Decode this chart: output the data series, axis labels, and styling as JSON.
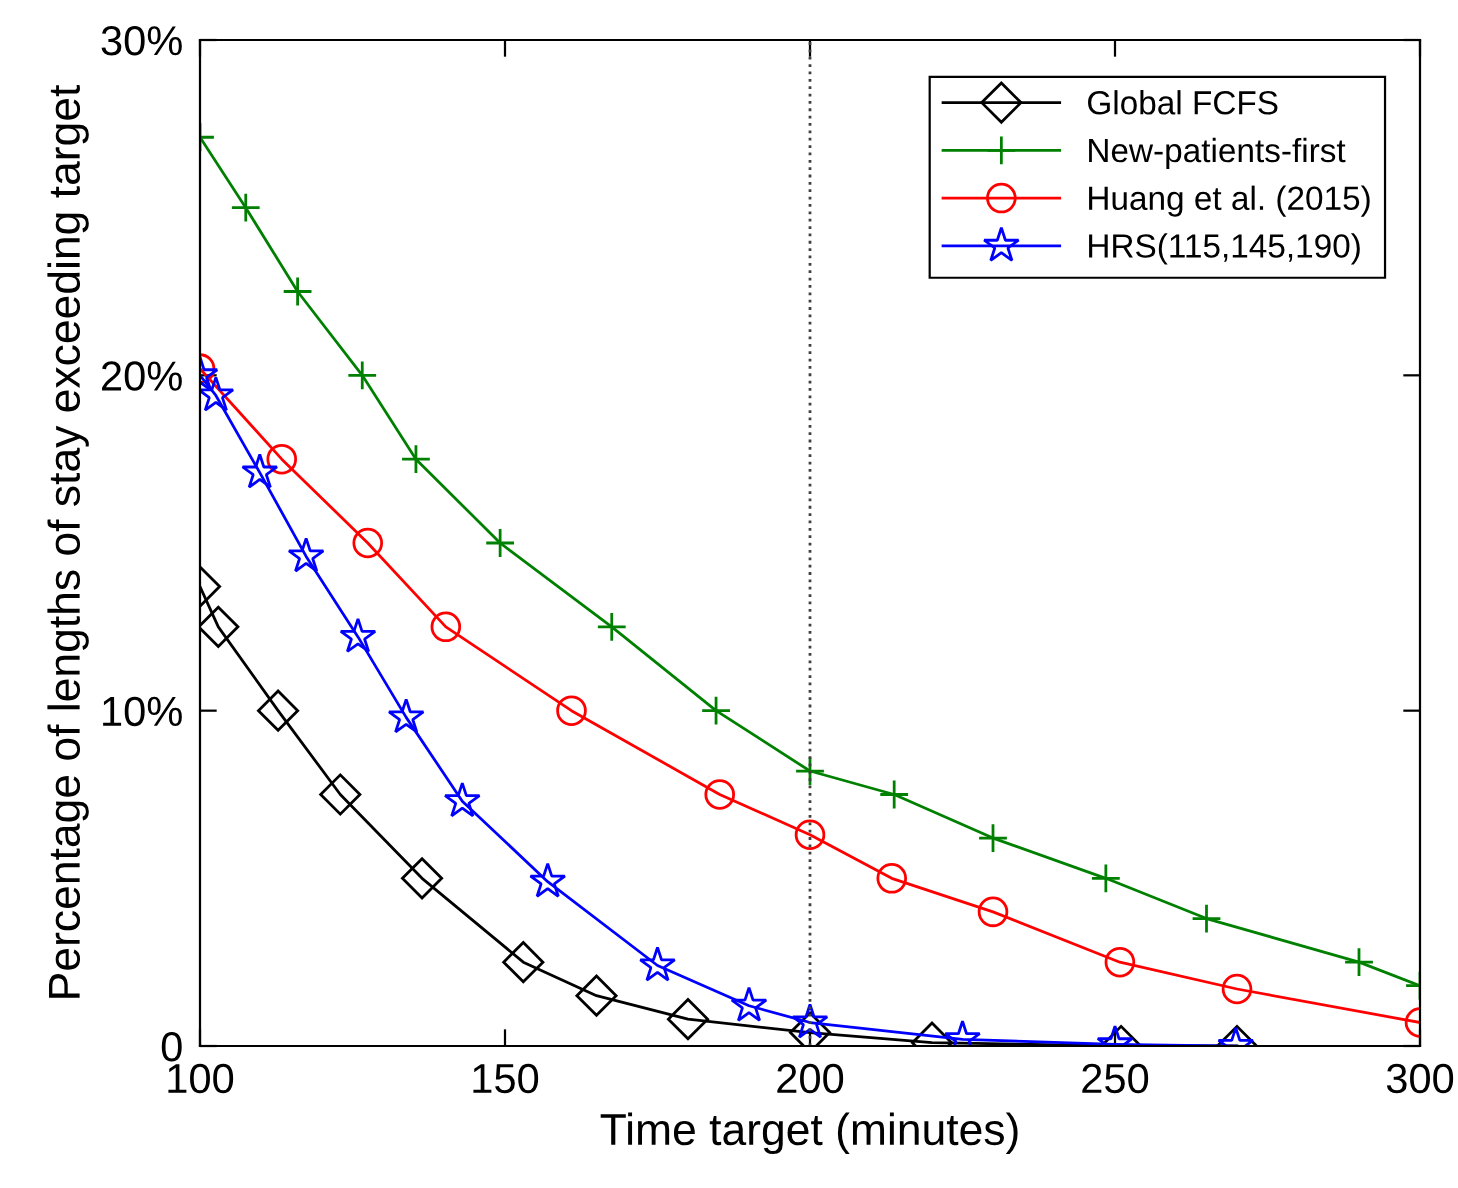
{
  "chart_data": {
    "type": "line",
    "xlabel": "Time target (minutes)",
    "ylabel": "Percentage of lengths of stay exceeding target",
    "xlim": [
      100,
      300
    ],
    "xticks": [
      100,
      150,
      200,
      250,
      300
    ],
    "ylim": [
      0,
      30
    ],
    "yticks": [
      {
        "value": 0,
        "label": "0"
      },
      {
        "value": 10,
        "label": "10%"
      },
      {
        "value": 20,
        "label": "20%"
      },
      {
        "value": 30,
        "label": "30%"
      }
    ],
    "legend": "top right",
    "grid": false,
    "ref_lines": [
      {
        "axis": "x",
        "value": 200,
        "label": null,
        "color": "#404040",
        "line_style": "dotted"
      }
    ],
    "series": [
      {
        "name": "Global FCFS",
        "color": "#000000",
        "marker": "diamond",
        "x": [
          100,
          103,
          112.8,
          123,
          136.4,
          153,
          165,
          180,
          200,
          220,
          251,
          270
        ],
        "values": [
          13.7,
          12.5,
          10,
          7.5,
          5,
          2.5,
          1.5,
          0.8,
          0.4,
          0.1,
          0,
          0
        ]
      },
      {
        "name": "New-patients-first",
        "color": "#008000",
        "marker": "cross",
        "x": [
          100,
          107.5,
          116,
          126.6,
          135.4,
          149.2,
          167.5,
          184.6,
          200,
          213.8,
          230,
          248.5,
          265,
          290,
          300
        ],
        "values": [
          27.1,
          25,
          22.5,
          20,
          17.5,
          15,
          12.5,
          10,
          8.2,
          7.5,
          6.2,
          5,
          3.8,
          2.5,
          1.8
        ]
      },
      {
        "name": "Huang et al. (2015)",
        "color": "#ff0000",
        "marker": "circle",
        "x": [
          100,
          113.4,
          127.5,
          140.3,
          160.9,
          185.2,
          200,
          213.4,
          230,
          250.8,
          270,
          300
        ],
        "values": [
          20.2,
          17.5,
          15,
          12.5,
          10,
          7.5,
          6.3,
          5,
          4,
          2.5,
          1.7,
          0.7
        ]
      },
      {
        "name": "HRS(115,145,190)",
        "color": "#0000ff",
        "marker": "star",
        "x": [
          100,
          102.6,
          109.8,
          117.4,
          125.9,
          133.8,
          143,
          157,
          175,
          190,
          200,
          225,
          250,
          269.8
        ],
        "values": [
          20,
          19.4,
          17.1,
          14.6,
          12.2,
          9.8,
          7.3,
          4.9,
          2.4,
          1.2,
          0.7,
          0.2,
          0.05,
          0
        ]
      }
    ]
  }
}
